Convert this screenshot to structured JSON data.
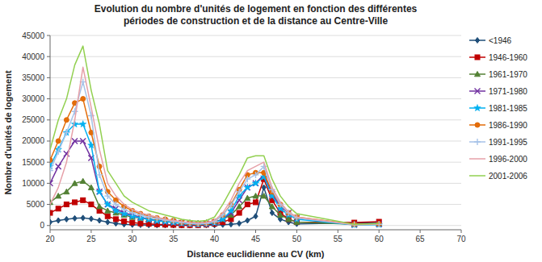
{
  "chart_data": {
    "type": "line",
    "title": "Evolution du nombre d'unités de logement en fonction des différentes\npériodes de construction et de la distance au Centre-Ville",
    "x_label": "Distance euclidienne au CV (km)",
    "y_label": "Nombre d'unités de logement",
    "xlim": [
      20,
      70
    ],
    "ylim": [
      -1000,
      45000
    ],
    "xticks": [
      20,
      25,
      30,
      35,
      40,
      45,
      50,
      55,
      60,
      65,
      70
    ],
    "yticks": [
      0,
      5000,
      10000,
      15000,
      20000,
      25000,
      30000,
      35000,
      40000,
      45000
    ],
    "grid": "y",
    "legend": "right",
    "x": [
      20,
      21,
      22,
      23,
      24,
      25,
      26,
      27,
      28,
      29,
      30,
      31,
      32,
      33,
      34,
      35,
      36,
      37,
      38,
      39,
      40,
      41,
      42,
      43,
      44,
      45,
      46,
      47,
      48,
      49,
      50,
      57,
      60
    ],
    "series": [
      {
        "name": "<1946",
        "color": "#1f4e79",
        "marker": "diamond",
        "values": [
          800,
          1200,
          1500,
          1700,
          1800,
          1600,
          1200,
          800,
          500,
          300,
          200,
          150,
          100,
          80,
          60,
          50,
          40,
          40,
          50,
          80,
          100,
          200,
          300,
          500,
          1200,
          2200,
          9000,
          3000,
          1500,
          800,
          400,
          600,
          700
        ]
      },
      {
        "name": "1946-1960",
        "color": "#c00000",
        "marker": "square",
        "values": [
          3000,
          4000,
          5000,
          5500,
          6000,
          5000,
          3500,
          2200,
          1500,
          1000,
          700,
          500,
          400,
          300,
          200,
          150,
          100,
          100,
          100,
          200,
          400,
          800,
          1500,
          3000,
          5000,
          5500,
          11000,
          6000,
          3000,
          1500,
          800,
          700,
          900
        ]
      },
      {
        "name": "1961-1970",
        "color": "#538135",
        "marker": "triangle",
        "values": [
          5500,
          7000,
          8000,
          10000,
          10500,
          9000,
          4500,
          3500,
          3000,
          2500,
          2000,
          1800,
          1500,
          1300,
          1200,
          1000,
          800,
          700,
          600,
          700,
          800,
          1500,
          2500,
          4500,
          6500,
          7000,
          7000,
          4500,
          2500,
          1500,
          800,
          300,
          400
        ]
      },
      {
        "name": "1971-1980",
        "color": "#7030a0",
        "marker": "x",
        "values": [
          10000,
          14000,
          17000,
          20000,
          20000,
          16000,
          8000,
          5000,
          4000,
          3000,
          2500,
          2000,
          1500,
          1200,
          1000,
          800,
          600,
          500,
          400,
          500,
          700,
          1500,
          3000,
          6000,
          9000,
          10000,
          12000,
          7500,
          4500,
          3000,
          1800,
          200,
          350
        ]
      },
      {
        "name": "1981-1985",
        "color": "#00b0f0",
        "marker": "star",
        "values": [
          14000,
          18000,
          22000,
          24000,
          24000,
          19000,
          8000,
          5000,
          3500,
          2800,
          2200,
          1800,
          1400,
          1100,
          900,
          700,
          500,
          400,
          300,
          400,
          600,
          1500,
          3500,
          7000,
          9000,
          10000,
          11500,
          7000,
          4000,
          2500,
          1500,
          150,
          200
        ]
      },
      {
        "name": "1986-1990",
        "color": "#e36c09",
        "marker": "circle",
        "values": [
          15500,
          20000,
          25000,
          29000,
          30000,
          22000,
          14000,
          8000,
          6000,
          4500,
          3500,
          2800,
          2200,
          1800,
          1500,
          1200,
          800,
          600,
          500,
          600,
          1000,
          2500,
          5000,
          8500,
          12000,
          12500,
          12500,
          8000,
          5000,
          3000,
          2000,
          300,
          400
        ]
      },
      {
        "name": "1991-1995",
        "color": "#a6c2e8",
        "marker": "plus",
        "values": [
          13000,
          17500,
          22000,
          27000,
          34000,
          26000,
          12000,
          7000,
          5000,
          3800,
          3000,
          2500,
          2000,
          1600,
          1300,
          1000,
          700,
          500,
          400,
          500,
          900,
          2500,
          4800,
          8000,
          11000,
          12000,
          14000,
          8500,
          5000,
          3000,
          1800,
          200,
          300
        ]
      },
      {
        "name": "1996-2000",
        "color": "#e6a0a8",
        "marker": "none",
        "values": [
          5000,
          9000,
          15000,
          25000,
          37500,
          28000,
          18000,
          10000,
          7000,
          5000,
          3800,
          3000,
          2500,
          2000,
          1500,
          1200,
          900,
          700,
          600,
          700,
          1200,
          3000,
          6000,
          10000,
          13000,
          14000,
          15000,
          9000,
          5500,
          3200,
          2000,
          200,
          350
        ]
      },
      {
        "name": "2001-2006",
        "color": "#92d050",
        "marker": "none",
        "values": [
          18000,
          25000,
          30000,
          38000,
          42500,
          32000,
          24000,
          13000,
          10000,
          7000,
          5500,
          4500,
          3500,
          3000,
          2500,
          2000,
          1500,
          1200,
          1000,
          1200,
          2000,
          5000,
          8500,
          12000,
          16000,
          16500,
          16500,
          11000,
          7000,
          4500,
          2800,
          300,
          500
        ]
      }
    ]
  }
}
